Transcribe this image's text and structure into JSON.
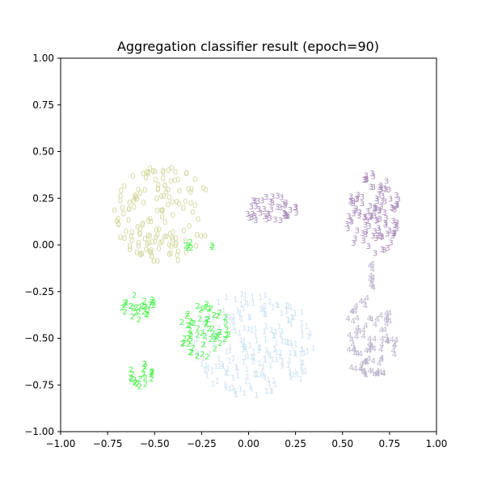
{
  "chart_data": {
    "type": "scatter",
    "title": "Aggregation classifier result (epoch=90)",
    "xlabel": "",
    "ylabel": "",
    "xlim": [
      -1.0,
      1.0
    ],
    "ylim": [
      -1.0,
      1.0
    ],
    "grid": false,
    "xticks": [
      "−1.00",
      "−0.75",
      "−0.50",
      "−0.25",
      "0.00",
      "0.25",
      "0.50",
      "0.75",
      "1.00"
    ],
    "yticks": [
      "−1.00",
      "−0.75",
      "−0.50",
      "−0.25",
      "0.00",
      "0.25",
      "0.50",
      "0.75",
      "1.00"
    ],
    "marker": "class label digit",
    "series": [
      {
        "name": "0",
        "label": "0",
        "color": "#d6d9a2",
        "clusters": [
          {
            "shape": "crescent",
            "cx": -0.45,
            "cy": 0.17,
            "rx": 0.27,
            "ry": 0.26,
            "inner_cx": -0.08,
            "inner_cy": 0.17,
            "inner_r": 0.19,
            "n": 150
          }
        ]
      },
      {
        "name": "1",
        "label": "1",
        "color": "#cfe3f3",
        "clusters": [
          {
            "shape": "ellipse",
            "cx": 0.03,
            "cy": -0.53,
            "rx": 0.32,
            "ry": 0.29,
            "n": 220
          }
        ]
      },
      {
        "name": "2",
        "label": "2",
        "color": "#4cf04c",
        "clusters": [
          {
            "shape": "ellipse",
            "cx": -0.58,
            "cy": -0.33,
            "rx": 0.1,
            "ry": 0.07,
            "n": 28
          },
          {
            "shape": "ellipse",
            "cx": -0.24,
            "cy": -0.45,
            "rx": 0.14,
            "ry": 0.15,
            "n": 60
          },
          {
            "shape": "ellipse",
            "cx": -0.57,
            "cy": -0.7,
            "rx": 0.07,
            "ry": 0.07,
            "n": 22
          },
          {
            "shape": "ellipse",
            "cx": -0.27,
            "cy": 0.0,
            "rx": 0.1,
            "ry": 0.02,
            "n": 7
          }
        ]
      },
      {
        "name": "3",
        "label": "3",
        "color": "#a98bbb",
        "clusters": [
          {
            "shape": "ellipse",
            "cx": 0.12,
            "cy": 0.19,
            "rx": 0.14,
            "ry": 0.08,
            "n": 45
          },
          {
            "shape": "ellipse",
            "cx": 0.66,
            "cy": 0.17,
            "rx": 0.15,
            "ry": 0.22,
            "n": 110
          }
        ]
      },
      {
        "name": "4",
        "label": "4",
        "color": "#bcb4cc",
        "clusters": [
          {
            "shape": "ellipse",
            "cx": 0.65,
            "cy": -0.5,
            "rx": 0.15,
            "ry": 0.22,
            "n": 90
          },
          {
            "shape": "ellipse",
            "cx": 0.66,
            "cy": -0.17,
            "rx": 0.02,
            "ry": 0.09,
            "n": 10
          }
        ]
      }
    ]
  }
}
